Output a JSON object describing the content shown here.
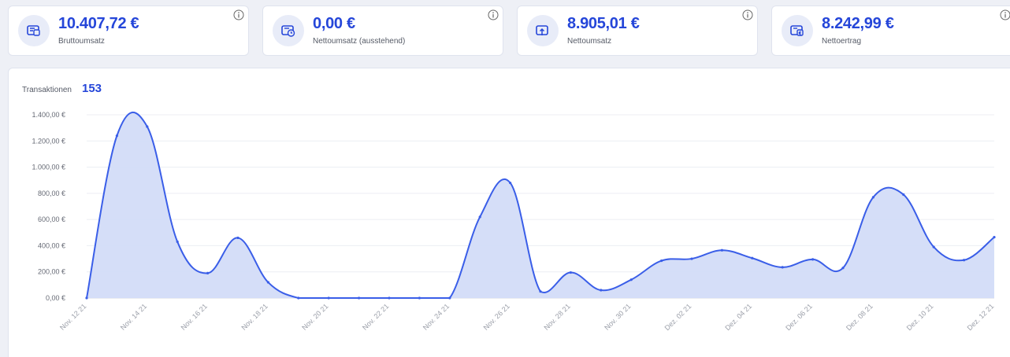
{
  "cards": [
    {
      "value": "10.407,72 €",
      "label": "Bruttoumsatz",
      "icon": "wallet-card-icon"
    },
    {
      "value": "0,00 €",
      "label": "Nettoumsatz (ausstehend)",
      "icon": "wallet-clock-icon"
    },
    {
      "value": "8.905,01 €",
      "label": "Nettoumsatz",
      "icon": "wallet-up-icon"
    },
    {
      "value": "8.242,99 €",
      "label": "Nettoertrag",
      "icon": "wallet-euro-icon"
    }
  ],
  "transactions": {
    "label": "Transaktionen",
    "count": "153"
  },
  "colors": {
    "accent": "#2546d9",
    "line": "#3a5ee8",
    "fill": "#d3dcf8"
  },
  "chart_data": {
    "type": "area",
    "title": "",
    "xlabel": "",
    "ylabel": "",
    "ylim": [
      0,
      1400
    ],
    "y_ticks": [
      0,
      200,
      400,
      600,
      800,
      1000,
      1200,
      1400
    ],
    "y_tick_labels": [
      "0,00 €",
      "200,00 €",
      "400,00 €",
      "600,00 €",
      "800,00 €",
      "1.000,00 €",
      "1.200,00 €",
      "1.400,00 €"
    ],
    "x_tick_labels": [
      "Nov. 12 21",
      "Nov. 14 21",
      "Nov. 16 21",
      "Nov. 18 21",
      "Nov. 20 21",
      "Nov. 22 21",
      "Nov. 24 21",
      "Nov. 26 21",
      "Nov. 28 21",
      "Nov. 30 21",
      "Dez. 02 21",
      "Dez. 04 21",
      "Dez. 06 21",
      "Dez. 08 21",
      "Dez. 10 21",
      "Dez. 12 21"
    ],
    "grid": true,
    "legend": "none",
    "series": [
      {
        "values": [
          0,
          1240,
          1310,
          430,
          190,
          460,
          120,
          0,
          0,
          0,
          0,
          0,
          0,
          620,
          880,
          50,
          195,
          60,
          140,
          285,
          300,
          365,
          305,
          235,
          295,
          230,
          770,
          790,
          390,
          290,
          465
        ]
      }
    ]
  }
}
